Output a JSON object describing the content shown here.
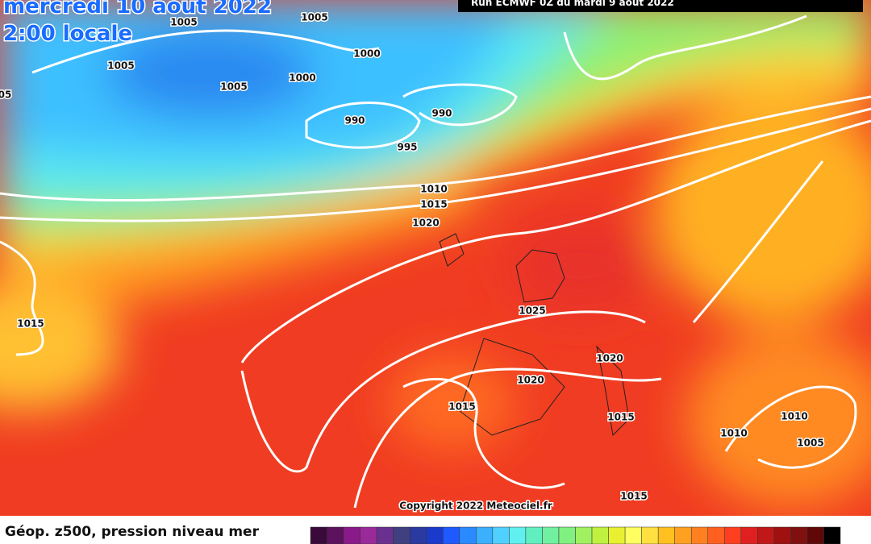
{
  "header": {
    "title": "mercredi 10 aout 2022",
    "time": "2:00 locale",
    "run": "Run ECMWF 0Z du mardi 9 aout 2022"
  },
  "isobar_labels": [
    "1005",
    "1005",
    "1005",
    "1005",
    "05",
    "1000",
    "1000",
    "990",
    "990",
    "995",
    "1010",
    "1015",
    "1020",
    "1015",
    "1025",
    "1020",
    "1020",
    "1015",
    "1015",
    "1015",
    "1010",
    "1010",
    "1005"
  ],
  "copyright": "Copyright 2022 Meteociel.fr",
  "legend": {
    "caption": "Géop. z500, pression niveau mer",
    "colors": [
      "#3a0a3a",
      "#5c125c",
      "#8a1a8a",
      "#9a2a9a",
      "#6a3090",
      "#404080",
      "#2a3aa0",
      "#1a3acc",
      "#1e5aff",
      "#2a8aff",
      "#3ab0ff",
      "#50d0ff",
      "#60f0f0",
      "#60f0c0",
      "#70f0a0",
      "#80f080",
      "#a0f060",
      "#c0f040",
      "#e8f030",
      "#ffff60",
      "#ffe040",
      "#ffc020",
      "#ffa020",
      "#ff8020",
      "#ff6020",
      "#ff4020",
      "#e02020",
      "#c01818",
      "#a01010",
      "#801010",
      "#600808",
      "#000000"
    ]
  }
}
